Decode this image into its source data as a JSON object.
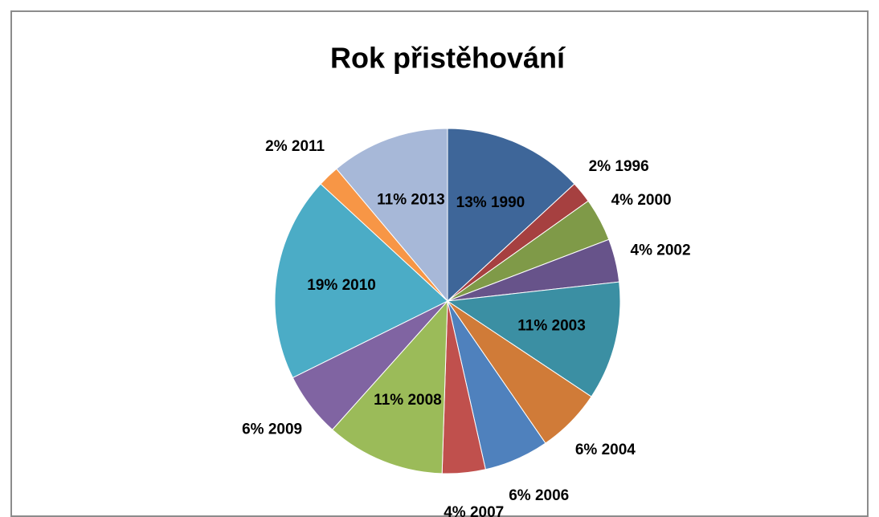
{
  "chart_data": {
    "type": "pie",
    "title": "Rok přistěhování",
    "categories": [
      "1990",
      "1996",
      "2000",
      "2002",
      "2003",
      "2004",
      "2006",
      "2007",
      "2008",
      "2009",
      "2010",
      "2011",
      "2013"
    ],
    "values": [
      13,
      2,
      4,
      4,
      11,
      6,
      6,
      4,
      11,
      6,
      19,
      2,
      11
    ],
    "value_labels": [
      "13%",
      "2%",
      "4%",
      "4%",
      "11%",
      "6%",
      "6%",
      "4%",
      "11%",
      "6%",
      "19%",
      "2%",
      "11%"
    ],
    "colors": [
      "#3e6699",
      "#a64040",
      "#7f9a48",
      "#67538a",
      "#3b8fa3",
      "#d07b38",
      "#4f81bd",
      "#c0504d",
      "#9bbb59",
      "#8064a2",
      "#4bacc6",
      "#f79646",
      "#a7b8d8"
    ]
  }
}
